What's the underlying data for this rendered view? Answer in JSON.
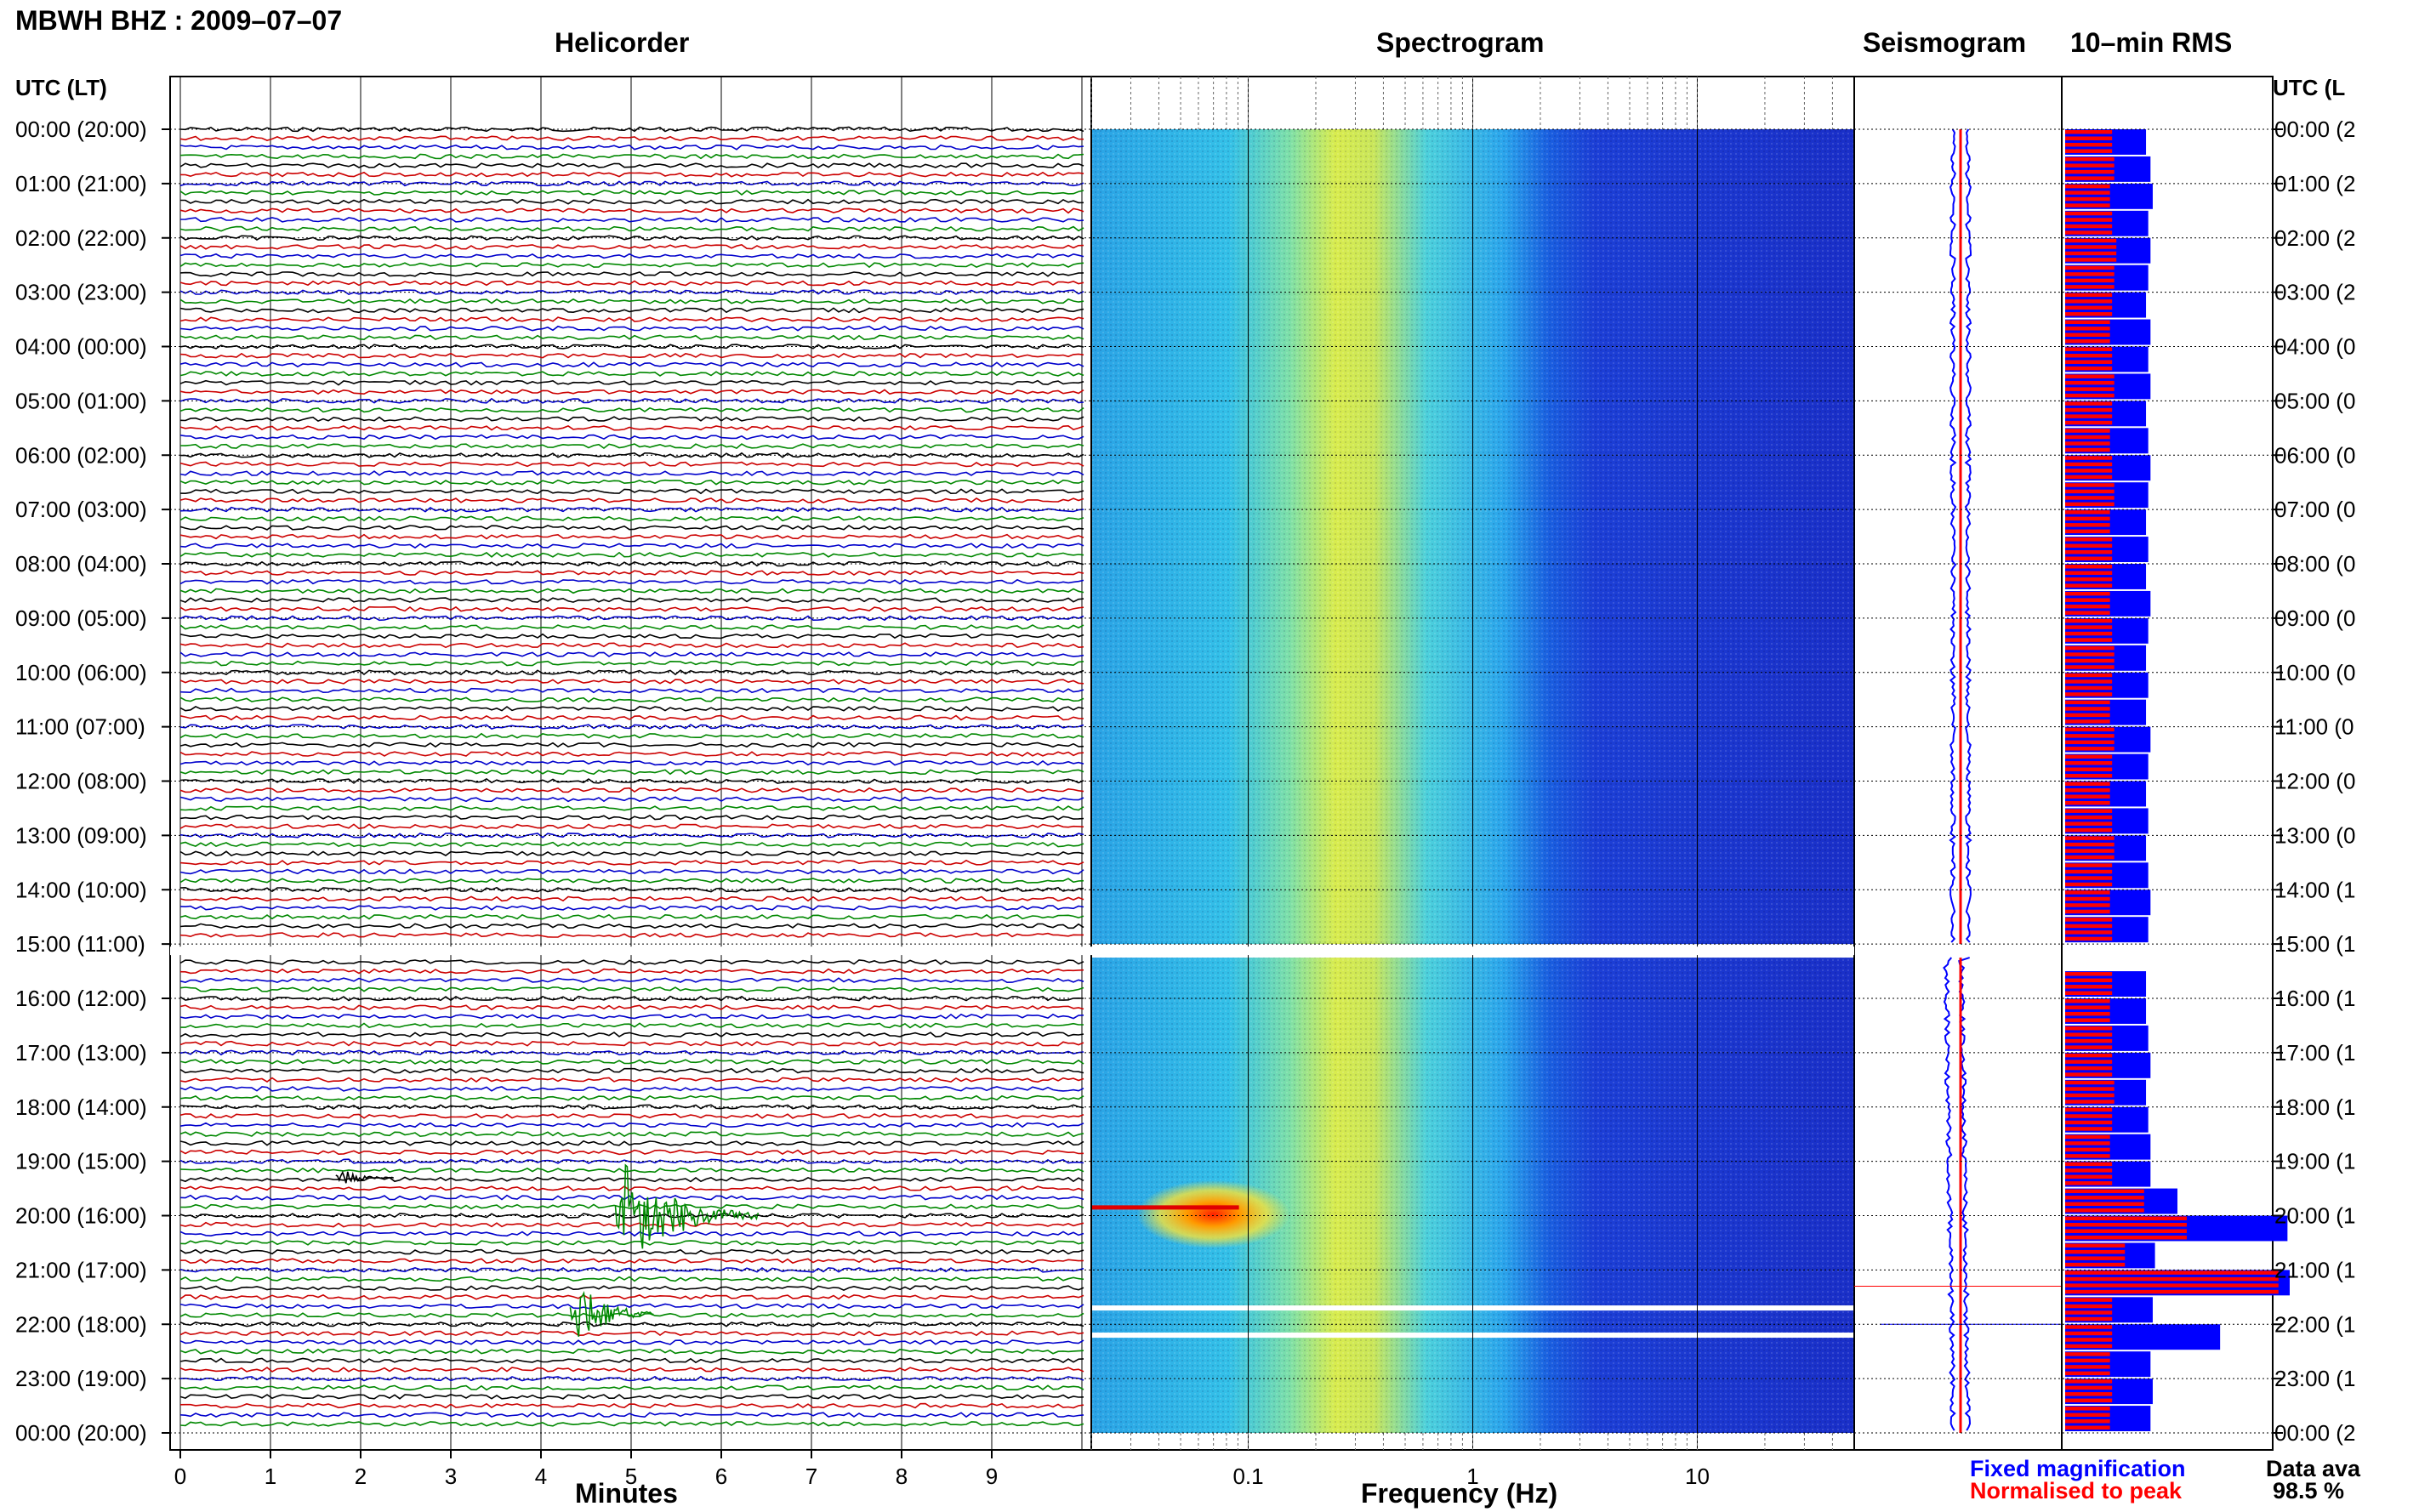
{
  "header": {
    "title": "MBWH BHZ : 2009–07–07"
  },
  "panels": {
    "helicorder": "Helicorder",
    "spectrogram": "Spectrogram",
    "seismogram": "Seismogram",
    "rms": "10–min RMS"
  },
  "axis_left_title": "UTC (LT)",
  "axis_right_title": "UTC (L",
  "time_labels": [
    "00:00 (20:00)",
    "01:00 (21:00)",
    "02:00 (22:00)",
    "03:00 (23:00)",
    "04:00 (00:00)",
    "05:00 (01:00)",
    "06:00 (02:00)",
    "07:00 (03:00)",
    "08:00 (04:00)",
    "09:00 (05:00)",
    "10:00 (06:00)",
    "11:00 (07:00)",
    "12:00 (08:00)",
    "13:00 (09:00)",
    "14:00 (10:00)",
    "15:00 (11:00)",
    "16:00 (12:00)",
    "17:00 (13:00)",
    "18:00 (14:00)",
    "19:00 (15:00)",
    "20:00 (16:00)",
    "21:00 (17:00)",
    "22:00 (18:00)",
    "23:00 (19:00)",
    "00:00 (20:00)"
  ],
  "right_time_labels": [
    "00:00 (2",
    "01:00 (2",
    "02:00 (2",
    "03:00 (2",
    "04:00 (0",
    "05:00 (0",
    "06:00 (0",
    "07:00 (0",
    "08:00 (0",
    "09:00 (0",
    "10:00 (0",
    "11:00 (0",
    "12:00 (0",
    "13:00 (0",
    "14:00 (1",
    "15:00 (1",
    "16:00 (1",
    "17:00 (1",
    "18:00 (1",
    "19:00 (1",
    "20:00 (1",
    "21:00 (1",
    "22:00 (1",
    "23:00 (1",
    "00:00 (2"
  ],
  "minutes_axis": {
    "label": "Minutes",
    "ticks": [
      "0",
      "1",
      "2",
      "3",
      "4",
      "5",
      "6",
      "7",
      "8",
      "9"
    ]
  },
  "frequency_axis": {
    "label": "Frequency (Hz)",
    "ticks": [
      "0.1",
      "1",
      "10"
    ],
    "scale": "log",
    "range": [
      0.02,
      50
    ]
  },
  "legend": {
    "fixed": "Fixed magnification",
    "normalised": "Normalised to peak"
  },
  "availability": {
    "label": "Data ava",
    "value": "98.5 %"
  },
  "colors": {
    "trace_cycle": [
      "#000000",
      "#cc0000",
      "#0000cc",
      "#008800"
    ],
    "event": "#008800",
    "fixed": "#0000ff",
    "normalised": "#ff0000",
    "grid": "#000000",
    "gap": "#ffffff"
  },
  "chart_data": {
    "type": "heatmap",
    "station": "MBWH",
    "channel": "BHZ",
    "date": "2009-07-07",
    "helicorder": {
      "minutes_per_line": 10,
      "x_range_minutes": [
        0,
        10
      ],
      "time_range_utc_hours": [
        0,
        24
      ],
      "data_gap_utc_hours": [
        15.0,
        15.25
      ],
      "events": [
        {
          "utc_hour": 20.0,
          "minute": 4.9,
          "description": "large transient, green trace"
        },
        {
          "utc_hour": 21.8,
          "minute": 4.4,
          "description": "transient, green trace"
        },
        {
          "utc_hour": 19.3,
          "minute": 1.8,
          "description": "small onset"
        }
      ]
    },
    "spectrogram": {
      "freq_hz_range": [
        0.02,
        50
      ],
      "energy_peak_hz_range": [
        0.25,
        0.5
      ],
      "low_freq_event_hz": 0.07,
      "low_freq_event_utc": 19.85
    },
    "rms_10min": {
      "units": "relative",
      "times_utc_hours": [
        0,
        0.5,
        1,
        1.5,
        2,
        2.5,
        3,
        3.5,
        4,
        4.5,
        5,
        5.5,
        6,
        6.5,
        7,
        7.5,
        8,
        8.5,
        9,
        9.5,
        10,
        10.5,
        11,
        11.5,
        12,
        12.5,
        13,
        13.5,
        14,
        14.5,
        15.5,
        16,
        16.5,
        17,
        17.5,
        18,
        18.5,
        19,
        19.5,
        20,
        20.5,
        21,
        21.5,
        22,
        22.5,
        23,
        23.5
      ],
      "fixed": [
        0.36,
        0.38,
        0.39,
        0.37,
        0.38,
        0.37,
        0.36,
        0.38,
        0.37,
        0.38,
        0.36,
        0.37,
        0.38,
        0.37,
        0.36,
        0.37,
        0.36,
        0.38,
        0.37,
        0.36,
        0.37,
        0.36,
        0.38,
        0.37,
        0.36,
        0.37,
        0.36,
        0.37,
        0.38,
        0.37,
        0.36,
        0.36,
        0.37,
        0.38,
        0.36,
        0.37,
        0.38,
        0.38,
        0.5,
        0.99,
        0.4,
        1.0,
        0.39,
        0.69,
        0.38,
        0.39,
        0.38
      ],
      "normalised": [
        0.22,
        0.23,
        0.21,
        0.22,
        0.24,
        0.23,
        0.22,
        0.21,
        0.22,
        0.23,
        0.22,
        0.21,
        0.22,
        0.23,
        0.21,
        0.22,
        0.22,
        0.21,
        0.22,
        0.23,
        0.22,
        0.21,
        0.23,
        0.22,
        0.21,
        0.22,
        0.23,
        0.22,
        0.21,
        0.22,
        0.22,
        0.21,
        0.22,
        0.22,
        0.23,
        0.22,
        0.21,
        0.22,
        0.37,
        0.57,
        0.28,
        1.0,
        0.22,
        0.22,
        0.21,
        0.22,
        0.21
      ]
    }
  }
}
